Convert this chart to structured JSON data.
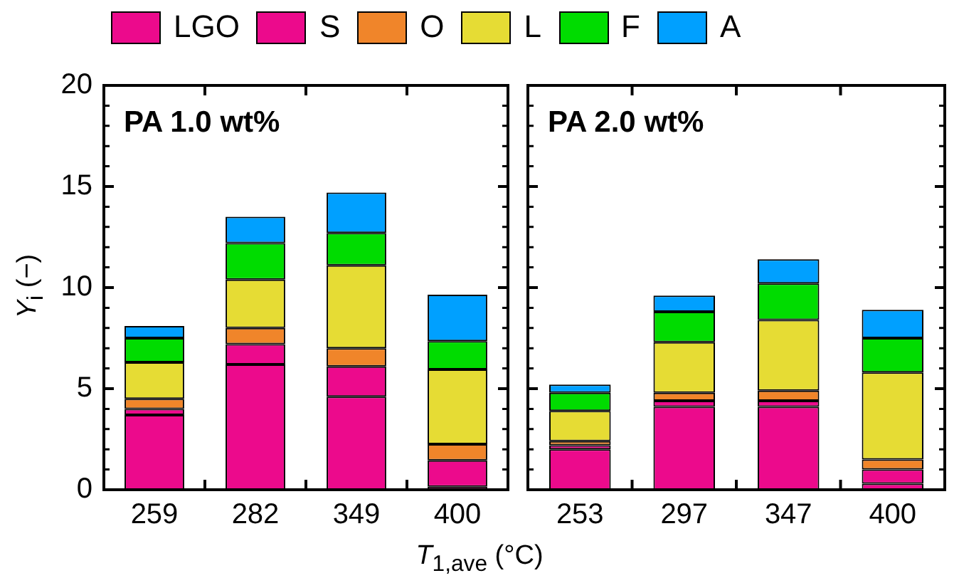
{
  "chart_data": [
    {
      "type": "bar",
      "title": "PA 1.0 wt%",
      "xlabel": "T$_{1,ave}$ (°C)",
      "ylabel": "Y$_{i}$ (−)",
      "stacked": true,
      "legend": "top",
      "grid": false,
      "categories": [
        "259",
        "282",
        "349",
        "400"
      ],
      "ylim": [
        0,
        20
      ],
      "yticks": [
        0,
        5,
        10,
        15,
        20
      ],
      "series": [
        {
          "name": "LGO",
          "color": "#ec0a8c",
          "values": [
            3.7,
            6.2,
            4.6,
            0.15
          ]
        },
        {
          "name": "S",
          "color": "#ec0a8c",
          "values": [
            0.3,
            1.0,
            1.5,
            1.3
          ]
        },
        {
          "name": "O",
          "color": "#f0852a",
          "values": [
            0.5,
            0.8,
            0.9,
            0.8
          ]
        },
        {
          "name": "L",
          "color": "#e6dc34",
          "values": [
            1.8,
            2.4,
            4.1,
            3.7
          ]
        },
        {
          "name": "F",
          "color": "#00dc00",
          "values": [
            1.2,
            1.8,
            1.6,
            1.4
          ]
        },
        {
          "name": "A",
          "color": "#00a0ff",
          "values": [
            0.6,
            1.3,
            2.0,
            2.3
          ]
        }
      ]
    },
    {
      "type": "bar",
      "title": "PA 2.0 wt%",
      "stacked": true,
      "grid": false,
      "tick_labels": "x",
      "categories": [
        "253",
        "297",
        "347",
        "400"
      ],
      "ylim": [
        0,
        20
      ],
      "yticks": [
        0,
        5,
        10,
        15,
        20
      ],
      "series": [
        {
          "color": "#ec0a8c",
          "values": [
            2.0,
            4.1,
            4.1,
            0.3
          ]
        },
        {
          "color": "#ec0a8c",
          "values": [
            0.2,
            0.3,
            0.3,
            0.7
          ]
        },
        {
          "color": "#f0852a",
          "values": [
            0.2,
            0.4,
            0.5,
            0.5
          ]
        },
        {
          "color": "#e6dc34",
          "values": [
            1.5,
            2.5,
            3.5,
            4.3
          ]
        },
        {
          "color": "#00dc00",
          "values": [
            0.9,
            1.5,
            1.8,
            1.7
          ]
        },
        {
          "color": "#00a0ff",
          "values": [
            0.4,
            0.8,
            1.2,
            1.4
          ]
        }
      ]
    }
  ]
}
